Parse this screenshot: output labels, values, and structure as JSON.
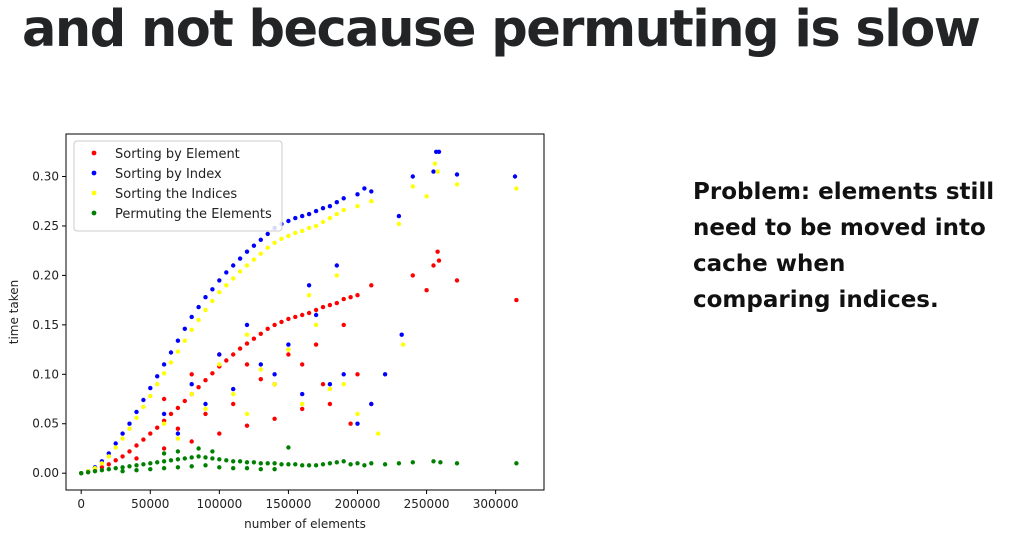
{
  "slide": {
    "title": "and not because permuting is slow",
    "note_lines": [
      "Problem: elements still",
      "need to be moved into",
      "cache when",
      "comparing indices."
    ]
  },
  "chart_data": {
    "type": "scatter",
    "xlabel": "number of elements",
    "ylabel": "time taken",
    "xlim": [
      -11000,
      335000
    ],
    "ylim": [
      -0.017,
      0.343
    ],
    "x_ticks": [
      0,
      50000,
      100000,
      150000,
      200000,
      250000,
      300000
    ],
    "x_tick_labels": [
      "0",
      "50000",
      "100000",
      "150000",
      "200000",
      "250000",
      "300000"
    ],
    "y_ticks": [
      0.0,
      0.05,
      0.1,
      0.15,
      0.2,
      0.25,
      0.3
    ],
    "y_tick_labels": [
      "0.00",
      "0.05",
      "0.10",
      "0.15",
      "0.20",
      "0.25",
      "0.30"
    ],
    "grid": false,
    "legend_position": "top-left",
    "series": [
      {
        "name": "Sorting by Element",
        "color": "#ff0000",
        "points": [
          [
            0,
            0.0
          ],
          [
            5000,
            0.001
          ],
          [
            10000,
            0.003
          ],
          [
            15000,
            0.006
          ],
          [
            20000,
            0.009
          ],
          [
            25000,
            0.013
          ],
          [
            30000,
            0.017
          ],
          [
            35000,
            0.022
          ],
          [
            40000,
            0.028
          ],
          [
            45000,
            0.034
          ],
          [
            50000,
            0.04
          ],
          [
            55000,
            0.046
          ],
          [
            60000,
            0.053
          ],
          [
            65000,
            0.06
          ],
          [
            70000,
            0.066
          ],
          [
            75000,
            0.073
          ],
          [
            80000,
            0.08
          ],
          [
            85000,
            0.087
          ],
          [
            90000,
            0.094
          ],
          [
            95000,
            0.101
          ],
          [
            100000,
            0.108
          ],
          [
            105000,
            0.114
          ],
          [
            110000,
            0.12
          ],
          [
            115000,
            0.126
          ],
          [
            120000,
            0.131
          ],
          [
            125000,
            0.136
          ],
          [
            130000,
            0.141
          ],
          [
            135000,
            0.146
          ],
          [
            140000,
            0.15
          ],
          [
            145000,
            0.153
          ],
          [
            150000,
            0.156
          ],
          [
            155000,
            0.158
          ],
          [
            160000,
            0.16
          ],
          [
            165000,
            0.162
          ],
          [
            170000,
            0.165
          ],
          [
            175000,
            0.168
          ],
          [
            180000,
            0.17
          ],
          [
            185000,
            0.172
          ],
          [
            190000,
            0.176
          ],
          [
            195000,
            0.178
          ],
          [
            200000,
            0.18
          ],
          [
            210000,
            0.19
          ],
          [
            40000,
            0.015
          ],
          [
            60000,
            0.025
          ],
          [
            80000,
            0.032
          ],
          [
            100000,
            0.04
          ],
          [
            120000,
            0.048
          ],
          [
            140000,
            0.055
          ],
          [
            160000,
            0.065
          ],
          [
            60000,
            0.075
          ],
          [
            80000,
            0.1
          ],
          [
            100000,
            0.12
          ],
          [
            120000,
            0.11
          ],
          [
            140000,
            0.09
          ],
          [
            160000,
            0.11
          ],
          [
            180000,
            0.07
          ],
          [
            200000,
            0.1
          ],
          [
            110000,
            0.07
          ],
          [
            130000,
            0.095
          ],
          [
            150000,
            0.12
          ],
          [
            90000,
            0.06
          ],
          [
            70000,
            0.045
          ],
          [
            170000,
            0.13
          ],
          [
            190000,
            0.15
          ],
          [
            240000,
            0.2
          ],
          [
            255000,
            0.21
          ],
          [
            258000,
            0.224
          ],
          [
            259000,
            0.215
          ],
          [
            272000,
            0.195
          ],
          [
            250000,
            0.185
          ],
          [
            315000,
            0.175
          ],
          [
            210000,
            0.07
          ],
          [
            195000,
            0.05
          ],
          [
            175000,
            0.09
          ]
        ]
      },
      {
        "name": "Sorting by Index",
        "color": "#0000ff",
        "points": [
          [
            0,
            0.0
          ],
          [
            5000,
            0.002
          ],
          [
            10000,
            0.006
          ],
          [
            15000,
            0.012
          ],
          [
            20000,
            0.02
          ],
          [
            25000,
            0.03
          ],
          [
            30000,
            0.04
          ],
          [
            35000,
            0.05
          ],
          [
            40000,
            0.062
          ],
          [
            45000,
            0.074
          ],
          [
            50000,
            0.086
          ],
          [
            55000,
            0.098
          ],
          [
            60000,
            0.11
          ],
          [
            65000,
            0.122
          ],
          [
            70000,
            0.134
          ],
          [
            75000,
            0.146
          ],
          [
            80000,
            0.158
          ],
          [
            85000,
            0.168
          ],
          [
            90000,
            0.178
          ],
          [
            95000,
            0.186
          ],
          [
            100000,
            0.195
          ],
          [
            105000,
            0.203
          ],
          [
            110000,
            0.21
          ],
          [
            115000,
            0.217
          ],
          [
            120000,
            0.224
          ],
          [
            125000,
            0.23
          ],
          [
            130000,
            0.236
          ],
          [
            135000,
            0.242
          ],
          [
            140000,
            0.248
          ],
          [
            145000,
            0.252
          ],
          [
            150000,
            0.255
          ],
          [
            155000,
            0.258
          ],
          [
            160000,
            0.26
          ],
          [
            165000,
            0.262
          ],
          [
            170000,
            0.265
          ],
          [
            175000,
            0.268
          ],
          [
            180000,
            0.27
          ],
          [
            185000,
            0.274
          ],
          [
            190000,
            0.278
          ],
          [
            200000,
            0.282
          ],
          [
            205000,
            0.288
          ],
          [
            210000,
            0.285
          ],
          [
            230000,
            0.26
          ],
          [
            240000,
            0.3
          ],
          [
            255000,
            0.305
          ],
          [
            257000,
            0.325
          ],
          [
            259000,
            0.325
          ],
          [
            272000,
            0.302
          ],
          [
            314000,
            0.3
          ],
          [
            60000,
            0.06
          ],
          [
            80000,
            0.09
          ],
          [
            100000,
            0.12
          ],
          [
            120000,
            0.15
          ],
          [
            140000,
            0.1
          ],
          [
            160000,
            0.08
          ],
          [
            180000,
            0.09
          ],
          [
            70000,
            0.04
          ],
          [
            90000,
            0.07
          ],
          [
            110000,
            0.085
          ],
          [
            130000,
            0.11
          ],
          [
            150000,
            0.13
          ],
          [
            170000,
            0.16
          ],
          [
            190000,
            0.1
          ],
          [
            210000,
            0.07
          ],
          [
            200000,
            0.05
          ],
          [
            165000,
            0.19
          ],
          [
            185000,
            0.21
          ],
          [
            220000,
            0.1
          ],
          [
            232000,
            0.14
          ]
        ]
      },
      {
        "name": "Sorting the Indices",
        "color": "#ffff00",
        "points": [
          [
            0,
            0.0
          ],
          [
            5000,
            0.002
          ],
          [
            10000,
            0.005
          ],
          [
            15000,
            0.01
          ],
          [
            20000,
            0.017
          ],
          [
            25000,
            0.026
          ],
          [
            30000,
            0.035
          ],
          [
            35000,
            0.045
          ],
          [
            40000,
            0.056
          ],
          [
            45000,
            0.067
          ],
          [
            50000,
            0.078
          ],
          [
            55000,
            0.09
          ],
          [
            60000,
            0.101
          ],
          [
            65000,
            0.112
          ],
          [
            70000,
            0.123
          ],
          [
            75000,
            0.134
          ],
          [
            80000,
            0.145
          ],
          [
            85000,
            0.155
          ],
          [
            90000,
            0.165
          ],
          [
            95000,
            0.174
          ],
          [
            100000,
            0.183
          ],
          [
            105000,
            0.19
          ],
          [
            110000,
            0.197
          ],
          [
            115000,
            0.204
          ],
          [
            120000,
            0.21
          ],
          [
            125000,
            0.216
          ],
          [
            130000,
            0.222
          ],
          [
            135000,
            0.228
          ],
          [
            140000,
            0.233
          ],
          [
            145000,
            0.237
          ],
          [
            150000,
            0.24
          ],
          [
            155000,
            0.243
          ],
          [
            160000,
            0.245
          ],
          [
            165000,
            0.248
          ],
          [
            170000,
            0.25
          ],
          [
            175000,
            0.254
          ],
          [
            180000,
            0.258
          ],
          [
            185000,
            0.262
          ],
          [
            190000,
            0.266
          ],
          [
            200000,
            0.27
          ],
          [
            210000,
            0.275
          ],
          [
            230000,
            0.252
          ],
          [
            240000,
            0.29
          ],
          [
            256000,
            0.313
          ],
          [
            258000,
            0.305
          ],
          [
            272000,
            0.292
          ],
          [
            315000,
            0.288
          ],
          [
            250000,
            0.28
          ],
          [
            60000,
            0.05
          ],
          [
            80000,
            0.08
          ],
          [
            100000,
            0.11
          ],
          [
            120000,
            0.14
          ],
          [
            140000,
            0.09
          ],
          [
            160000,
            0.07
          ],
          [
            180000,
            0.085
          ],
          [
            70000,
            0.035
          ],
          [
            90000,
            0.065
          ],
          [
            110000,
            0.08
          ],
          [
            130000,
            0.105
          ],
          [
            150000,
            0.125
          ],
          [
            170000,
            0.15
          ],
          [
            190000,
            0.09
          ],
          [
            200000,
            0.06
          ],
          [
            215000,
            0.04
          ],
          [
            165000,
            0.18
          ],
          [
            185000,
            0.2
          ],
          [
            233000,
            0.13
          ],
          [
            120000,
            0.06
          ]
        ]
      },
      {
        "name": "Permuting the Elements",
        "color": "#008000",
        "points": [
          [
            0,
            0.0
          ],
          [
            5000,
            0.001
          ],
          [
            10000,
            0.002
          ],
          [
            15000,
            0.003
          ],
          [
            20000,
            0.004
          ],
          [
            25000,
            0.005
          ],
          [
            30000,
            0.006
          ],
          [
            35000,
            0.007
          ],
          [
            40000,
            0.008
          ],
          [
            45000,
            0.009
          ],
          [
            50000,
            0.01
          ],
          [
            55000,
            0.011
          ],
          [
            60000,
            0.012
          ],
          [
            65000,
            0.013
          ],
          [
            70000,
            0.014
          ],
          [
            75000,
            0.015
          ],
          [
            80000,
            0.016
          ],
          [
            85000,
            0.017
          ],
          [
            90000,
            0.016
          ],
          [
            95000,
            0.015
          ],
          [
            100000,
            0.014
          ],
          [
            105000,
            0.013
          ],
          [
            110000,
            0.012
          ],
          [
            115000,
            0.012
          ],
          [
            120000,
            0.011
          ],
          [
            125000,
            0.011
          ],
          [
            130000,
            0.01
          ],
          [
            135000,
            0.01
          ],
          [
            140000,
            0.01
          ],
          [
            145000,
            0.009
          ],
          [
            150000,
            0.009
          ],
          [
            155000,
            0.009
          ],
          [
            160000,
            0.008
          ],
          [
            165000,
            0.008
          ],
          [
            170000,
            0.008
          ],
          [
            175000,
            0.009
          ],
          [
            180000,
            0.01
          ],
          [
            185000,
            0.011
          ],
          [
            190000,
            0.012
          ],
          [
            195000,
            0.009
          ],
          [
            200000,
            0.01
          ],
          [
            205000,
            0.008
          ],
          [
            210000,
            0.01
          ],
          [
            220000,
            0.009
          ],
          [
            230000,
            0.01
          ],
          [
            240000,
            0.011
          ],
          [
            255000,
            0.012
          ],
          [
            260000,
            0.011
          ],
          [
            272000,
            0.01
          ],
          [
            315000,
            0.01
          ],
          [
            50000,
            0.004
          ],
          [
            60000,
            0.005
          ],
          [
            70000,
            0.006
          ],
          [
            80000,
            0.007
          ],
          [
            90000,
            0.008
          ],
          [
            100000,
            0.006
          ],
          [
            110000,
            0.005
          ],
          [
            120000,
            0.005
          ],
          [
            130000,
            0.004
          ],
          [
            140000,
            0.004
          ],
          [
            60000,
            0.02
          ],
          [
            70000,
            0.022
          ],
          [
            85000,
            0.025
          ],
          [
            95000,
            0.022
          ],
          [
            150000,
            0.026
          ],
          [
            40000,
            0.003
          ],
          [
            30000,
            0.002
          ]
        ]
      }
    ]
  }
}
